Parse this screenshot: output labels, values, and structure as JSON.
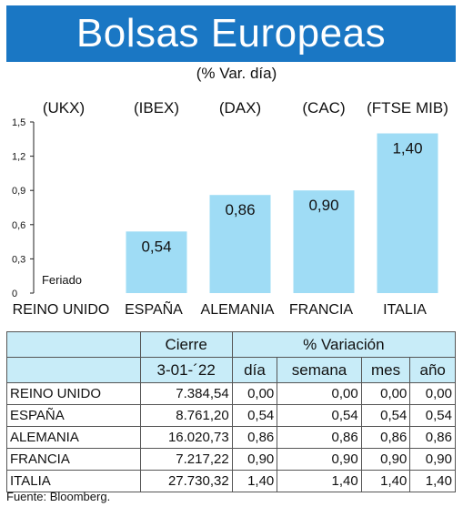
{
  "title": "Bolsas Europeas",
  "subtitle": "(% Var. día)",
  "chart_data": {
    "type": "bar",
    "categories": [
      "REINO UNIDO",
      "ESPAÑA",
      "ALEMANIA",
      "FRANCIA",
      "ITALIA"
    ],
    "indices": [
      "(UKX)",
      "(IBEX)",
      "(DAX)",
      "(CAC)",
      "(FTSE MIB)"
    ],
    "values": [
      0,
      0.54,
      0.86,
      0.9,
      1.4
    ],
    "value_labels": [
      "Feriado",
      "0,54",
      "0,86",
      "0,90",
      "1,40"
    ],
    "yticks": [
      "0",
      "0,3",
      "0,6",
      "0,9",
      "1,2",
      "1,5"
    ],
    "ylim": [
      0,
      1.5
    ],
    "bar_color": "#9fdcf5"
  },
  "table": {
    "header_cierre": "Cierre",
    "header_variacion": "% Variación",
    "date": "3-01-´22",
    "col_dia": "día",
    "col_semana": "semana",
    "col_mes": "mes",
    "col_anio": "año",
    "rows": [
      {
        "name": "REINO UNIDO",
        "cierre": "7.384,54",
        "dia": "0,00",
        "semana": "0,00",
        "mes": "0,00",
        "anio": "0,00"
      },
      {
        "name": "ESPAÑA",
        "cierre": "8.761,20",
        "dia": "0,54",
        "semana": "0,54",
        "mes": "0,54",
        "anio": "0,54"
      },
      {
        "name": "ALEMANIA",
        "cierre": "16.020,73",
        "dia": "0,86",
        "semana": "0,86",
        "mes": "0,86",
        "anio": "0,86"
      },
      {
        "name": "FRANCIA",
        "cierre": "7.217,22",
        "dia": "0,90",
        "semana": "0,90",
        "mes": "0,90",
        "anio": "0,90"
      },
      {
        "name": "ITALIA",
        "cierre": "27.730,32",
        "dia": "1,40",
        "semana": "1,40",
        "mes": "1,40",
        "anio": "1,40"
      }
    ],
    "header_bg": "#c8ecf8"
  },
  "source": "Fuente: Bloomberg."
}
